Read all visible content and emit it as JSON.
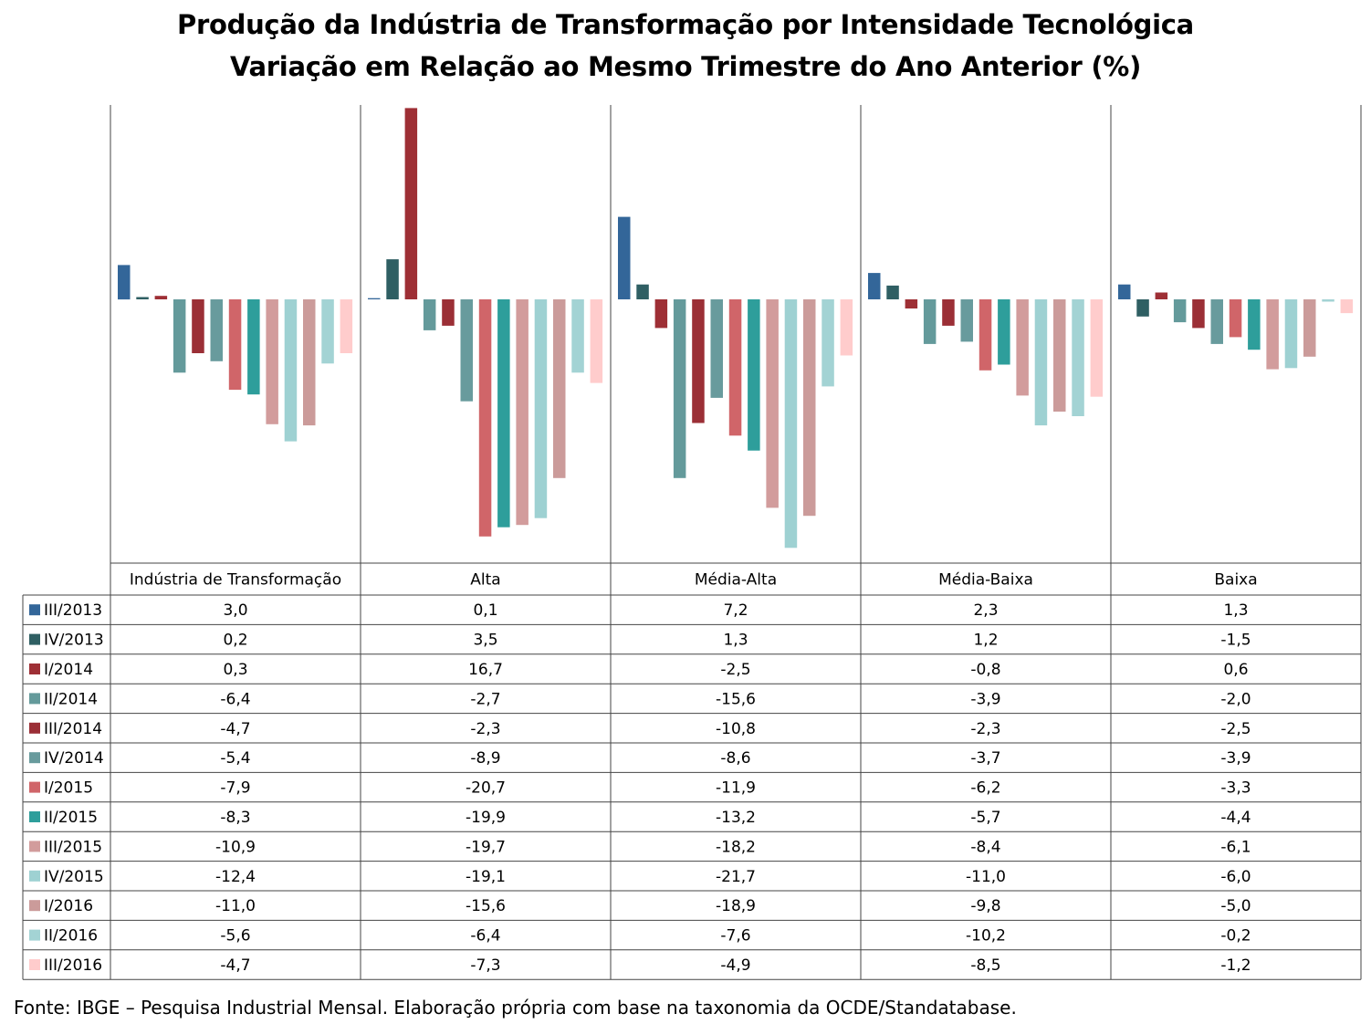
{
  "title_line1": "Produção da Indústria de Transformação por Intensidade Tecnológica",
  "title_line2": "Variação em Relação ao Mesmo Trimestre do Ano Anterior (%)",
  "footer": "Fonte: IBGE – Pesquisa Industrial Mensal. Elaboração própria com base na taxonomia da OCDE/Standatabase.",
  "chart_data": {
    "type": "bar",
    "categories": [
      "Indústria de Transformação",
      "Alta",
      "Média-Alta",
      "Média-Baixa",
      "Baixa"
    ],
    "series": [
      {
        "name": "III/2013",
        "color": "#336699",
        "values": [
          3.0,
          0.1,
          7.2,
          2.3,
          1.3
        ]
      },
      {
        "name": "IV/2013",
        "color": "#2F5F63",
        "values": [
          0.2,
          3.5,
          1.3,
          1.2,
          -1.5
        ]
      },
      {
        "name": "I/2014",
        "color": "#9E2F35",
        "values": [
          0.3,
          16.7,
          -2.5,
          -0.8,
          0.6
        ]
      },
      {
        "name": "II/2014",
        "color": "#649A9B",
        "values": [
          -6.4,
          -2.7,
          -15.6,
          -3.9,
          -2.0
        ]
      },
      {
        "name": "III/2014",
        "color": "#9B2F36",
        "values": [
          -4.7,
          -2.3,
          -10.8,
          -2.3,
          -2.5
        ]
      },
      {
        "name": "IV/2014",
        "color": "#689B9D",
        "values": [
          -5.4,
          -8.9,
          -8.6,
          -3.7,
          -3.9
        ]
      },
      {
        "name": "I/2015",
        "color": "#D06569",
        "values": [
          -7.9,
          -20.7,
          -11.9,
          -6.2,
          -3.3
        ]
      },
      {
        "name": "II/2015",
        "color": "#2E9E9B",
        "values": [
          -8.3,
          -19.9,
          -13.2,
          -5.7,
          -4.4
        ]
      },
      {
        "name": "III/2015",
        "color": "#D29C9C",
        "values": [
          -10.9,
          -19.7,
          -18.2,
          -8.4,
          -6.1
        ]
      },
      {
        "name": "IV/2015",
        "color": "#9ED1D2",
        "values": [
          -12.4,
          -19.1,
          -21.7,
          -11.0,
          -6.0
        ]
      },
      {
        "name": "I/2016",
        "color": "#CB9B9A",
        "values": [
          -11.0,
          -15.6,
          -18.9,
          -9.8,
          -5.0
        ]
      },
      {
        "name": "II/2016",
        "color": "#A3D3D4",
        "values": [
          -5.6,
          -6.4,
          -7.6,
          -10.2,
          -0.2
        ]
      },
      {
        "name": "III/2016",
        "color": "#FFCCCC",
        "values": [
          -4.7,
          -7.3,
          -4.9,
          -8.5,
          -1.2
        ]
      }
    ],
    "table_values": [
      [
        "3,0",
        "0,1",
        "7,2",
        "2,3",
        "1,3"
      ],
      [
        "0,2",
        "3,5",
        "1,3",
        "1,2",
        "-1,5"
      ],
      [
        "0,3",
        "16,7",
        "-2,5",
        "-0,8",
        "0,6"
      ],
      [
        "-6,4",
        "-2,7",
        "-15,6",
        "-3,9",
        "-2,0"
      ],
      [
        "-4,7",
        "-2,3",
        "-10,8",
        "-2,3",
        "-2,5"
      ],
      [
        "-5,4",
        "-8,9",
        "-8,6",
        "-3,7",
        "-3,9"
      ],
      [
        "-7,9",
        "-20,7",
        "-11,9",
        "-6,2",
        "-3,3"
      ],
      [
        "-8,3",
        "-19,9",
        "-13,2",
        "-5,7",
        "-4,4"
      ],
      [
        "-10,9",
        "-19,7",
        "-18,2",
        "-8,4",
        "-6,1"
      ],
      [
        "-12,4",
        "-19,1",
        "-21,7",
        "-11,0",
        "-6,0"
      ],
      [
        "-11,0",
        "-15,6",
        "-18,9",
        "-9,8",
        "-5,0"
      ],
      [
        "-5,6",
        "-6,4",
        "-7,6",
        "-10,2",
        "-0,2"
      ],
      [
        "-4,7",
        "-7,3",
        "-4,9",
        "-8,5",
        "-1,2"
      ]
    ],
    "ylim": [
      -22,
      17
    ],
    "legend": "data-table-left",
    "grid": false
  }
}
